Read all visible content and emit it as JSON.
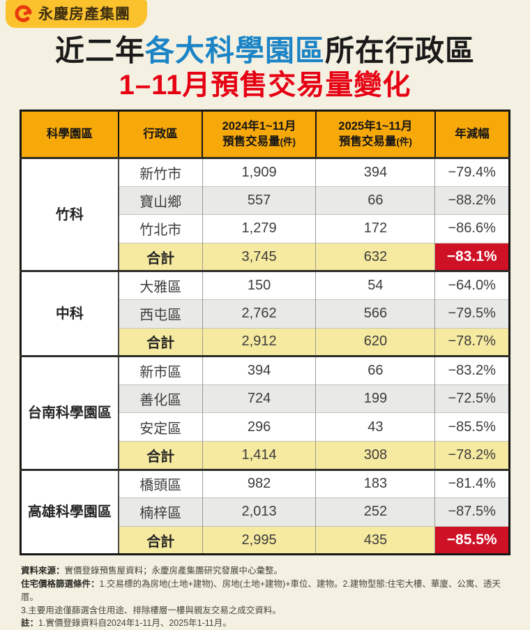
{
  "colors": {
    "background": "#F4F1E2",
    "badge_yellow": "#FBC22E",
    "logo_red": "#E8380D",
    "title_blue": "#1B84C6",
    "title_red": "#E60012",
    "header_amber": "#F8A90A",
    "stripe_gray": "#E9E9E7",
    "total_yellow": "#F6E9A0",
    "highlight_red": "#CF1126"
  },
  "brand": {
    "name": "永慶房產集團"
  },
  "title": {
    "prefix": "近二年",
    "highlight": "各大科學園區",
    "suffix": "所在行政區"
  },
  "subtitle": {
    "text": "1–11月預售交易量變化"
  },
  "table": {
    "headers": [
      {
        "top": "科學園區"
      },
      {
        "top": "行政區"
      },
      {
        "top": "2024年1~11月",
        "bottom": "預售交易量",
        "unit": "(件)"
      },
      {
        "top": "2025年1~11月",
        "bottom": "預售交易量",
        "unit": "(件)"
      },
      {
        "top": "年減幅"
      }
    ],
    "groups": [
      {
        "park": "竹科",
        "rows": [
          {
            "district": "新竹市",
            "v2024": "1,909",
            "v2025": "394",
            "yoy": "−79.4%"
          },
          {
            "district": "寶山鄉",
            "v2024": "557",
            "v2025": "66",
            "yoy": "−88.2%"
          },
          {
            "district": "竹北市",
            "v2024": "1,279",
            "v2025": "172",
            "yoy": "−86.6%"
          }
        ],
        "total": {
          "label": "合計",
          "v2024": "3,745",
          "v2025": "632",
          "yoy": "−83.1%",
          "highlight": true
        }
      },
      {
        "park": "中科",
        "rows": [
          {
            "district": "大雅區",
            "v2024": "150",
            "v2025": "54",
            "yoy": "−64.0%"
          },
          {
            "district": "西屯區",
            "v2024": "2,762",
            "v2025": "566",
            "yoy": "−79.5%"
          }
        ],
        "total": {
          "label": "合計",
          "v2024": "2,912",
          "v2025": "620",
          "yoy": "−78.7%",
          "highlight": false
        }
      },
      {
        "park": "台南科學園區",
        "rows": [
          {
            "district": "新市區",
            "v2024": "394",
            "v2025": "66",
            "yoy": "−83.2%"
          },
          {
            "district": "善化區",
            "v2024": "724",
            "v2025": "199",
            "yoy": "−72.5%"
          },
          {
            "district": "安定區",
            "v2024": "296",
            "v2025": "43",
            "yoy": "−85.5%"
          }
        ],
        "total": {
          "label": "合計",
          "v2024": "1,414",
          "v2025": "308",
          "yoy": "−78.2%",
          "highlight": false
        }
      },
      {
        "park": "高雄科學園區",
        "rows": [
          {
            "district": "橋頭區",
            "v2024": "982",
            "v2025": "183",
            "yoy": "−81.4%"
          },
          {
            "district": "楠梓區",
            "v2024": "2,013",
            "v2025": "252",
            "yoy": "−87.5%"
          }
        ],
        "total": {
          "label": "合計",
          "v2024": "2,995",
          "v2025": "435",
          "yoy": "−85.5%",
          "highlight": true
        }
      }
    ]
  },
  "notes": [
    {
      "prefix": "資料來源：",
      "text": "實價登錄預售屋資料；永慶房產集團研究發展中心彙整。"
    },
    {
      "prefix": "住宅價格篩選條件：",
      "text": "1.交易標的為房地(土地+建物)、房地(土地+建物)+車位、建物。2.建物型態:住宅大樓、華廈、公寓、透天厝。"
    },
    {
      "prefix": "",
      "text": "3.主要用途僅篩選含住用途、排除樓層一樓與親友交易之成交資料。"
    },
    {
      "prefix": "註：",
      "text": "1.實價登錄資料自2024年1-11月、2025年1-11月。"
    }
  ],
  "chart_data": {
    "type": "table",
    "title": "近二年各大科學園區所在行政區1–11月預售交易量變化",
    "columns": [
      "科學園區",
      "行政區",
      "2024年1~11月預售交易量(件)",
      "2025年1~11月預售交易量(件)",
      "年減幅"
    ],
    "rows": [
      [
        "竹科",
        "新竹市",
        1909,
        394,
        "-79.4%"
      ],
      [
        "竹科",
        "寶山鄉",
        557,
        66,
        "-88.2%"
      ],
      [
        "竹科",
        "竹北市",
        1279,
        172,
        "-86.6%"
      ],
      [
        "竹科",
        "合計",
        3745,
        632,
        "-83.1%"
      ],
      [
        "中科",
        "大雅區",
        150,
        54,
        "-64.0%"
      ],
      [
        "中科",
        "西屯區",
        2762,
        566,
        "-79.5%"
      ],
      [
        "中科",
        "合計",
        2912,
        620,
        "-78.7%"
      ],
      [
        "台南科學園區",
        "新市區",
        394,
        66,
        "-83.2%"
      ],
      [
        "台南科學園區",
        "善化區",
        724,
        199,
        "-72.5%"
      ],
      [
        "台南科學園區",
        "安定區",
        296,
        43,
        "-85.5%"
      ],
      [
        "台南科學園區",
        "合計",
        1414,
        308,
        "-78.2%"
      ],
      [
        "高雄科學園區",
        "橋頭區",
        982,
        183,
        "-81.4%"
      ],
      [
        "高雄科學園區",
        "楠梓區",
        2013,
        252,
        "-87.5%"
      ],
      [
        "高雄科學園區",
        "合計",
        2995,
        435,
        "-85.5%"
      ]
    ],
    "highlighted_cells": [
      {
        "row": "竹科合計",
        "column": "年減幅",
        "value": "-83.1%",
        "style": "red-background-white-text"
      },
      {
        "row": "高雄科學園區合計",
        "column": "年減幅",
        "value": "-85.5%",
        "style": "red-background-white-text"
      }
    ],
    "legend_position": "none",
    "grid": true
  }
}
